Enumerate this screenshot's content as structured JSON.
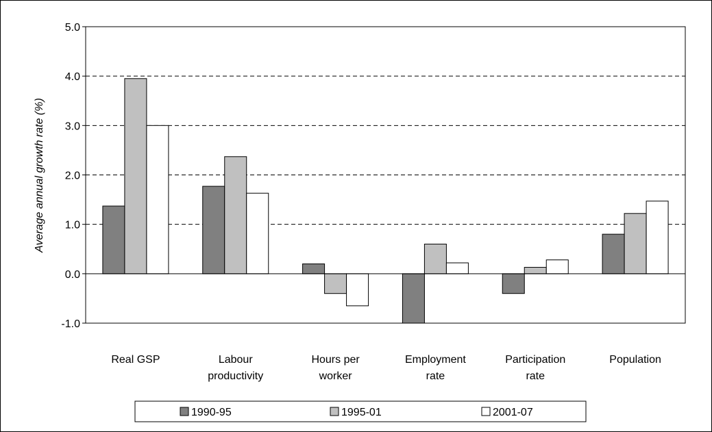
{
  "chart_data": {
    "type": "bar",
    "title": "",
    "xlabel": "",
    "ylabel": "Average annual growth rate (%)",
    "ylim": [
      -1.0,
      5.0
    ],
    "yticks": [
      -1.0,
      0.0,
      1.0,
      2.0,
      3.0,
      4.0,
      5.0
    ],
    "ytick_labels": [
      "-1.0",
      "0.0",
      "1.0",
      "2.0",
      "3.0",
      "4.0",
      "5.0"
    ],
    "grid": "horizontal dashed",
    "legend_position": "bottom",
    "categories": [
      [
        "Real GSP"
      ],
      [
        "Labour",
        "productivity"
      ],
      [
        "Hours per",
        "worker"
      ],
      [
        "Employment",
        "rate"
      ],
      [
        "Participation",
        "rate"
      ],
      [
        "Population"
      ]
    ],
    "series": [
      {
        "name": "1990-95",
        "color": "#808080",
        "values": [
          1.37,
          1.77,
          0.2,
          -1.0,
          -0.4,
          0.8
        ]
      },
      {
        "name": "1995-01",
        "color": "#c0c0c0",
        "values": [
          3.95,
          2.37,
          -0.4,
          0.6,
          0.13,
          1.22
        ]
      },
      {
        "name": "2001-07",
        "color": "#ffffff",
        "values": [
          3.0,
          1.63,
          -0.65,
          0.22,
          0.28,
          1.47
        ]
      }
    ]
  }
}
